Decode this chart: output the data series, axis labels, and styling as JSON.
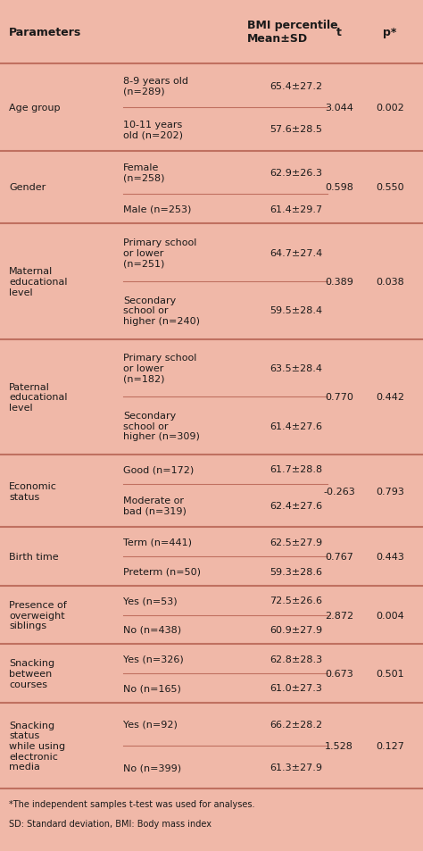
{
  "bg_color": "#f0b8a8",
  "col_headers": [
    "Parameters",
    "BMI percentile\nMean±SD",
    "t",
    "p*"
  ],
  "footnote1": "*The independent samples t-test was used for analyses.",
  "footnote2": "SD: Standard deviation, BMI: Body mass index",
  "groups": [
    {
      "param": "Age group",
      "rows": [
        {
          "sub": "8-9 years old\n(n=289)",
          "bmi": "65.4±27.2"
        },
        {
          "sub": "10-11 years\nold (n=202)",
          "bmi": "57.6±28.5"
        }
      ],
      "t": "3.044",
      "p": "0.002"
    },
    {
      "param": "Gender",
      "rows": [
        {
          "sub": "Female\n(n=258)",
          "bmi": "62.9±26.3"
        },
        {
          "sub": "Male (n=253)",
          "bmi": "61.4±29.7"
        }
      ],
      "t": "0.598",
      "p": "0.550"
    },
    {
      "param": "Maternal\neducational\nlevel",
      "rows": [
        {
          "sub": "Primary school\nor lower\n(n=251)",
          "bmi": "64.7±27.4"
        },
        {
          "sub": "Secondary\nschool or\nhigher (n=240)",
          "bmi": "59.5±28.4"
        }
      ],
      "t": "0.389",
      "p": "0.038"
    },
    {
      "param": "Paternal\neducational\nlevel",
      "rows": [
        {
          "sub": "Primary school\nor lower\n(n=182)",
          "bmi": "63.5±28.4"
        },
        {
          "sub": "Secondary\nschool or\nhigher (n=309)",
          "bmi": "61.4±27.6"
        }
      ],
      "t": "0.770",
      "p": "0.442"
    },
    {
      "param": "Economic\nstatus",
      "rows": [
        {
          "sub": "Good (n=172)",
          "bmi": "61.7±28.8"
        },
        {
          "sub": "Moderate or\nbad (n=319)",
          "bmi": "62.4±27.6"
        }
      ],
      "t": "-0.263",
      "p": "0.793"
    },
    {
      "param": "Birth time",
      "rows": [
        {
          "sub": "Term (n=441)",
          "bmi": "62.5±27.9"
        },
        {
          "sub": "Preterm (n=50)",
          "bmi": "59.3±28.6"
        }
      ],
      "t": "0.767",
      "p": "0.443"
    },
    {
      "param": "Presence of\noverweight\nsiblings",
      "rows": [
        {
          "sub": "Yes (n=53)",
          "bmi": "72.5±26.6"
        },
        {
          "sub": "No (n=438)",
          "bmi": "60.9±27.9"
        }
      ],
      "t": "2.872",
      "p": "0.004"
    },
    {
      "param": "Snacking\nbetween\ncourses",
      "rows": [
        {
          "sub": "Yes (n=326)",
          "bmi": "62.8±28.3"
        },
        {
          "sub": "No (n=165)",
          "bmi": "61.0±27.3"
        }
      ],
      "t": "0.673",
      "p": "0.501"
    },
    {
      "param": "Snacking\nstatus\nwhile using\nelectronic\nmedia",
      "rows": [
        {
          "sub": "Yes (n=92)",
          "bmi": "66.2±28.2"
        },
        {
          "sub": "No (n=399)",
          "bmi": "61.3±27.9"
        }
      ],
      "t": "1.528",
      "p": "0.127"
    }
  ],
  "text_color": "#1a1a1a",
  "line_color": "#c07060",
  "font_size": 8.0,
  "header_font_size": 9.0
}
